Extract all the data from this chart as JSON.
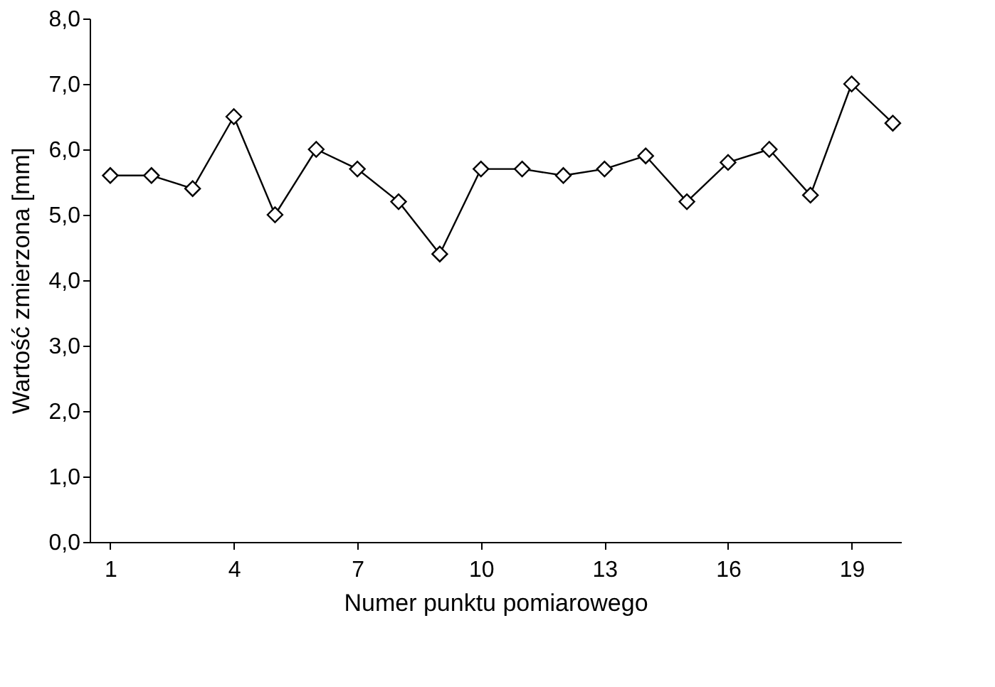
{
  "chart_data": {
    "type": "line",
    "xlabel": "Numer punktu pomiarowego",
    "ylabel": "Wartość zmierzona [mm]",
    "x": [
      1,
      2,
      3,
      4,
      5,
      6,
      7,
      8,
      9,
      10,
      11,
      12,
      13,
      14,
      15,
      16,
      17,
      18,
      19,
      20
    ],
    "series": [
      {
        "color": "#000000",
        "values": [
          5.6,
          5.6,
          5.4,
          6.5,
          5.0,
          6.0,
          5.7,
          5.2,
          4.4,
          5.7,
          5.7,
          5.6,
          5.7,
          5.9,
          5.2,
          5.8,
          6.0,
          5.3,
          7.0,
          6.4
        ]
      }
    ],
    "xlim": [
      0.5,
      20.2
    ],
    "xticks": [
      1,
      4,
      7,
      10,
      13,
      16,
      19
    ],
    "ylim": [
      0,
      8
    ],
    "yticks": [
      {
        "value": 0,
        "label": "0,0"
      },
      {
        "value": 1,
        "label": "1,0"
      },
      {
        "value": 2,
        "label": "2,0"
      },
      {
        "value": 3,
        "label": "3,0"
      },
      {
        "value": 4,
        "label": "4,0"
      },
      {
        "value": 5,
        "label": "5,0"
      },
      {
        "value": 6,
        "label": "6,0"
      },
      {
        "value": 7,
        "label": "7,0"
      },
      {
        "value": 8,
        "label": "8,0"
      }
    ],
    "grid": false,
    "marker": "diamond",
    "line_style": "solid"
  }
}
